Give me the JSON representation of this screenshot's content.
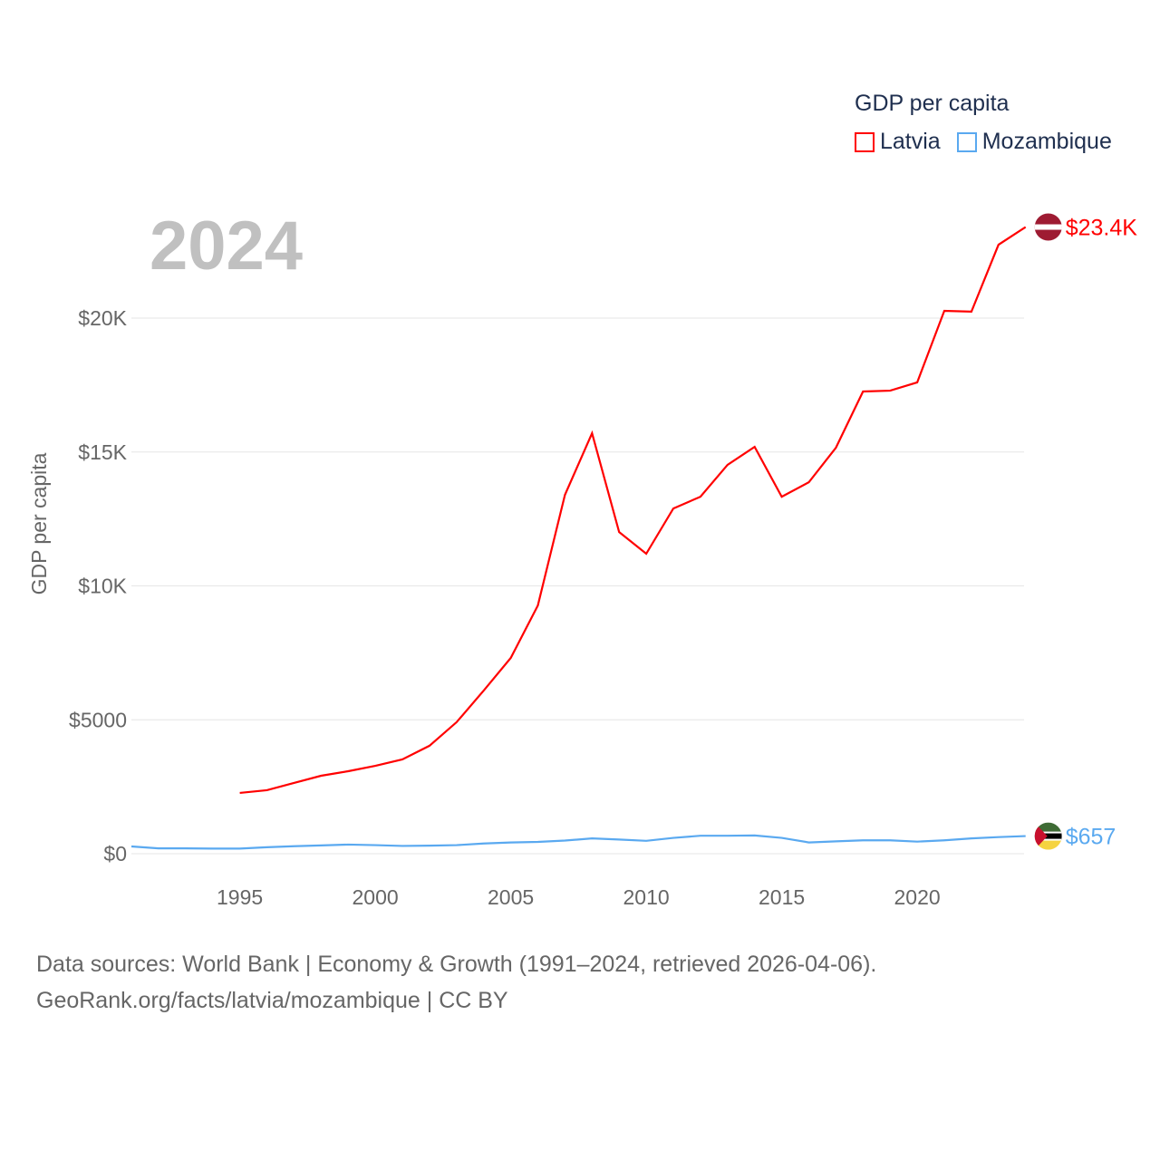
{
  "chart_data": {
    "type": "line",
    "title": "GDP per capita",
    "ylabel": "GDP per capita",
    "xlabel": "",
    "ylim": [
      0,
      24000
    ],
    "xlim": [
      1991,
      2024
    ],
    "yticks": [
      {
        "v": 0,
        "label": "$0"
      },
      {
        "v": 5000,
        "label": "$5000"
      },
      {
        "v": 10000,
        "label": "$10K"
      },
      {
        "v": 15000,
        "label": "$15K"
      },
      {
        "v": 20000,
        "label": "$20K"
      }
    ],
    "xticks": [
      1995,
      2000,
      2005,
      2010,
      2015,
      2020
    ],
    "grid": true,
    "legend_placement": "top-right",
    "current_year": "2024",
    "series": [
      {
        "name": "Latvia",
        "color": "#ff0000",
        "end_label": "$23.4K",
        "x": [
          1995,
          1996,
          1997,
          1998,
          1999,
          2000,
          2001,
          2002,
          2003,
          2004,
          2005,
          2006,
          2007,
          2008,
          2009,
          2010,
          2011,
          2012,
          2013,
          2014,
          2015,
          2016,
          2017,
          2018,
          2019,
          2020,
          2021,
          2022,
          2023,
          2024
        ],
        "values": [
          2270,
          2370,
          2640,
          2910,
          3080,
          3280,
          3520,
          4030,
          4910,
          6090,
          7310,
          9270,
          13400,
          15700,
          12010,
          11200,
          12890,
          13330,
          14520,
          15190,
          13330,
          13870,
          15160,
          17260,
          17290,
          17600,
          20270,
          20240,
          22740,
          23400
        ]
      },
      {
        "name": "Mozambique",
        "color": "#5aa9f0",
        "end_label": "$657",
        "x": [
          1991,
          1992,
          1993,
          1994,
          1995,
          1996,
          1997,
          1998,
          1999,
          2000,
          2001,
          2002,
          2003,
          2004,
          2005,
          2006,
          2007,
          2008,
          2009,
          2010,
          2011,
          2012,
          2013,
          2014,
          2015,
          2016,
          2017,
          2018,
          2019,
          2020,
          2021,
          2022,
          2023,
          2024
        ],
        "values": [
          270,
          200,
          200,
          190,
          190,
          240,
          280,
          310,
          340,
          320,
          290,
          300,
          320,
          380,
          420,
          440,
          490,
          570,
          530,
          480,
          590,
          670,
          670,
          680,
          590,
          420,
          460,
          500,
          500,
          450,
          500,
          570,
          620,
          657
        ]
      }
    ]
  },
  "footer": {
    "line1": "Data sources: World Bank | Economy & Growth (1991–2024, retrieved 2026-04-06).",
    "line2": "GeoRank.org/facts/latvia/mozambique | CC BY"
  }
}
